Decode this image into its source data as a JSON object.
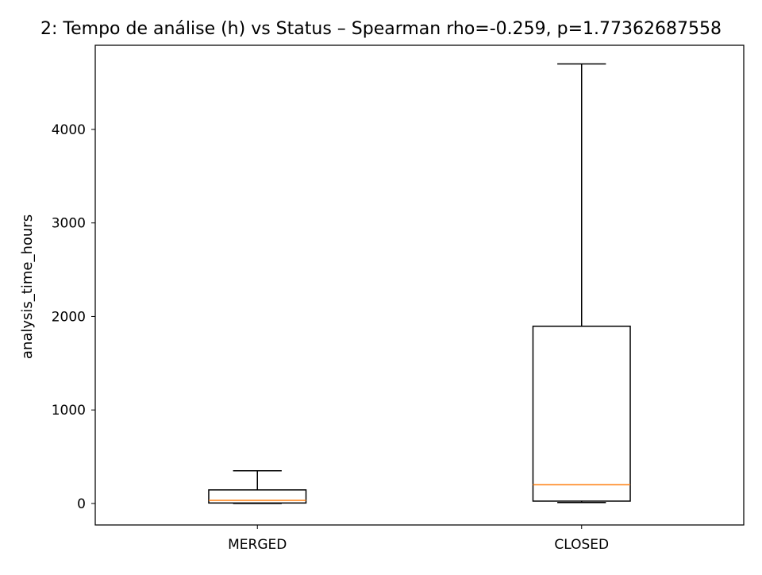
{
  "chart_data": {
    "type": "box",
    "title": "2: Tempo de análise (h) vs Status – Spearman rho=-0.259, p=1.77362687558",
    "xlabel": "",
    "ylabel": "analysis_time_hours",
    "ylim": [
      -230,
      4900
    ],
    "yticks": [
      0,
      1000,
      2000,
      3000,
      4000
    ],
    "categories": [
      "MERGED",
      "CLOSED"
    ],
    "boxes": [
      {
        "category": "MERGED",
        "whisker_low": 0,
        "q1": 5,
        "median": 33,
        "q3": 145,
        "whisker_high": 350
      },
      {
        "category": "CLOSED",
        "whisker_low": 10,
        "q1": 25,
        "median": 200,
        "q3": 1895,
        "whisker_high": 4700
      }
    ],
    "grid": false,
    "colors": {
      "box": "#000000",
      "median": "#ff7f0e"
    }
  }
}
